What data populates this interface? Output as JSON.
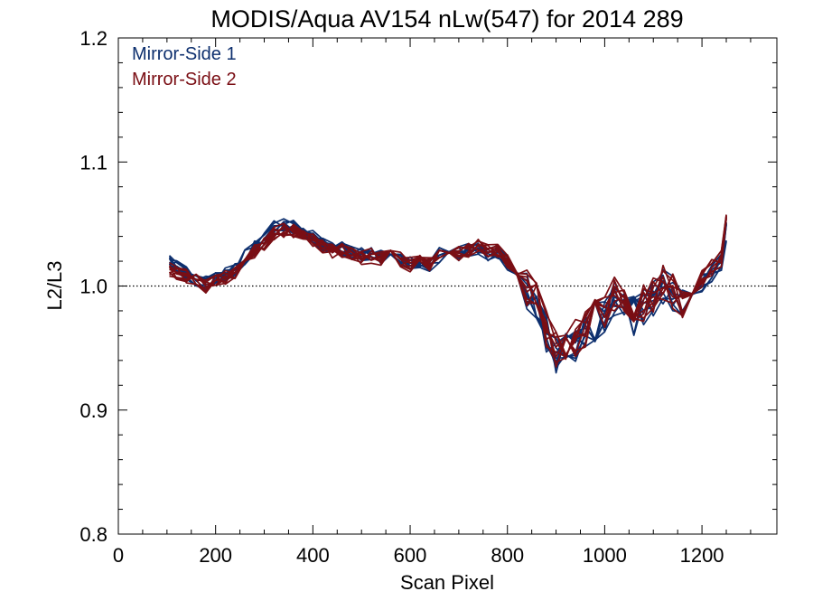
{
  "chart_data": {
    "type": "line",
    "title": "MODIS/Aqua AV154 nLw(547) for 2014 289",
    "xlabel": "Scan Pixel",
    "ylabel": "L2/L3",
    "xlim": [
      0,
      1354
    ],
    "ylim": [
      0.8,
      1.2
    ],
    "xticks": [
      "0",
      "200",
      "400",
      "600",
      "800",
      "1000",
      "1200"
    ],
    "yticks": [
      "0.8",
      "0.9",
      "1.0",
      "1.1",
      "1.2"
    ],
    "reference_line": {
      "y": 1.0,
      "style": "dotted"
    },
    "legend_position": "top-left",
    "colors": {
      "mirror_side_1": "#0d2f6e",
      "mirror_side_2": "#7a0e14"
    },
    "x": [
      105,
      120,
      140,
      160,
      180,
      200,
      220,
      240,
      260,
      280,
      300,
      320,
      340,
      360,
      380,
      400,
      420,
      440,
      460,
      480,
      500,
      520,
      540,
      560,
      580,
      600,
      620,
      640,
      660,
      680,
      700,
      720,
      740,
      760,
      780,
      800,
      820,
      840,
      860,
      880,
      900,
      920,
      940,
      960,
      980,
      1000,
      1020,
      1040,
      1060,
      1080,
      1100,
      1120,
      1140,
      1160,
      1180,
      1200,
      1220,
      1240,
      1250
    ],
    "series": [
      {
        "name": "Mirror-Side 1",
        "values": [
          1.022,
          1.018,
          1.013,
          1.008,
          1.004,
          1.009,
          1.011,
          1.016,
          1.025,
          1.033,
          1.041,
          1.049,
          1.051,
          1.05,
          1.046,
          1.041,
          1.036,
          1.031,
          1.032,
          1.03,
          1.027,
          1.027,
          1.025,
          1.029,
          1.025,
          1.021,
          1.023,
          1.02,
          1.027,
          1.032,
          1.028,
          1.031,
          1.033,
          1.028,
          1.029,
          1.02,
          1.008,
          0.998,
          0.985,
          0.962,
          0.944,
          0.948,
          0.956,
          0.963,
          0.973,
          0.978,
          0.994,
          0.989,
          0.978,
          0.985,
          0.993,
          1.001,
          0.994,
          0.985,
          0.996,
          1.005,
          1.013,
          1.022,
          1.046
        ]
      },
      {
        "name": "Mirror-Side 2",
        "values": [
          1.015,
          1.012,
          1.009,
          1.005,
          1.001,
          1.005,
          1.008,
          1.013,
          1.021,
          1.029,
          1.036,
          1.043,
          1.046,
          1.046,
          1.043,
          1.039,
          1.034,
          1.029,
          1.03,
          1.028,
          1.025,
          1.026,
          1.024,
          1.027,
          1.023,
          1.019,
          1.022,
          1.019,
          1.026,
          1.031,
          1.028,
          1.031,
          1.034,
          1.03,
          1.031,
          1.022,
          1.011,
          1.001,
          0.989,
          0.967,
          0.951,
          0.953,
          0.96,
          0.967,
          0.976,
          0.981,
          0.996,
          0.991,
          0.981,
          0.987,
          0.995,
          1.003,
          0.996,
          0.988,
          0.998,
          1.007,
          1.015,
          1.024,
          1.058
        ]
      }
    ]
  }
}
